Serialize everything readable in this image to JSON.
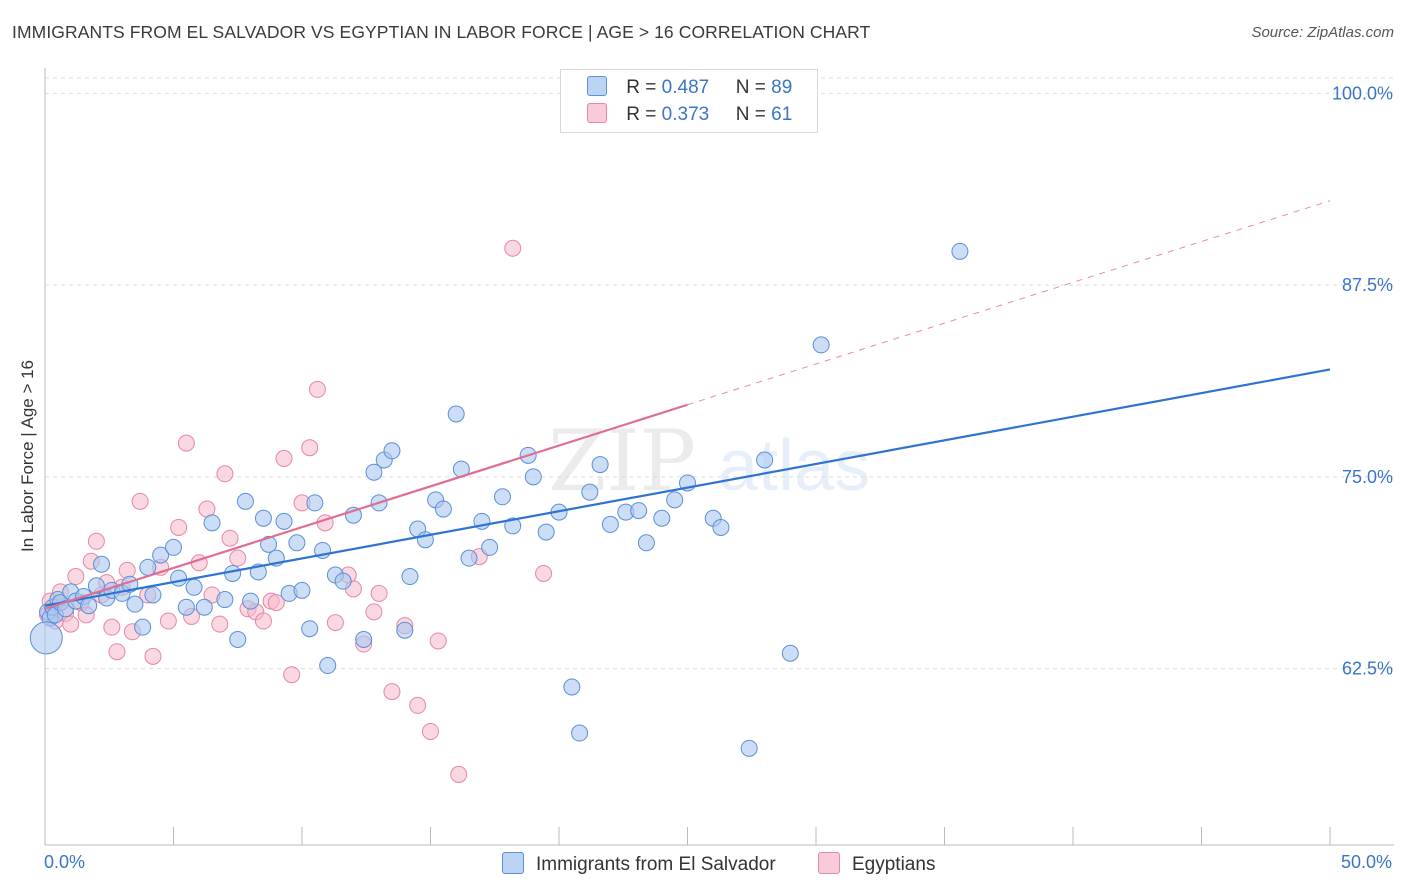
{
  "header": {
    "title": "IMMIGRANTS FROM EL SALVADOR VS EGYPTIAN IN LABOR FORCE | AGE > 16 CORRELATION CHART",
    "source": "Source: ZipAtlas.com"
  },
  "watermark": {
    "zip": "ZIP",
    "atlas": "atlas"
  },
  "legend": {
    "rows": [
      {
        "r_label": "R =",
        "r_value": "0.487",
        "n_label": "N =",
        "n_value": "89"
      },
      {
        "r_label": "R =",
        "r_value": "0.373",
        "n_label": "N =",
        "n_value": "61"
      }
    ]
  },
  "colors": {
    "blue_fill": "#a9c8f0",
    "blue_stroke": "#5b8fd6",
    "blue_line": "#2f73d1",
    "pink_fill": "#f5b8cb",
    "pink_stroke": "#e587a5",
    "pink_line": "#e06d93",
    "axis_text": "#3b74c9",
    "grid": "#dddddd"
  },
  "chart_data": {
    "type": "scatter",
    "ylabel": "In Labor Force | Age > 16",
    "xlim": [
      0,
      50
    ],
    "ylim": [
      51,
      101
    ],
    "x_tick_labels": [
      "0.0%",
      "50.0%"
    ],
    "y_ticks": [
      62.5,
      75.0,
      87.5,
      100.0
    ],
    "y_tick_labels": [
      "62.5%",
      "75.0%",
      "87.5%",
      "100.0%"
    ],
    "grid": true,
    "legend_position": "top-center",
    "series": [
      {
        "name": "Immigrants from El Salvador",
        "color": "blue",
        "trend": {
          "x0": 0,
          "y0": 66.6,
          "x1": 50,
          "y1": 82.0,
          "dashed_from": null
        },
        "points": [
          [
            0.1,
            66.2
          ],
          [
            0.2,
            65.8
          ],
          [
            0.3,
            66.5
          ],
          [
            0.4,
            66.0
          ],
          [
            0.5,
            67.0
          ],
          [
            0.6,
            66.8
          ],
          [
            0.8,
            66.4
          ],
          [
            1.0,
            67.5
          ],
          [
            1.2,
            66.9
          ],
          [
            1.5,
            67.2
          ],
          [
            1.7,
            66.6
          ],
          [
            2.0,
            67.9
          ],
          [
            2.2,
            69.3
          ],
          [
            2.4,
            67.1
          ],
          [
            2.6,
            67.6
          ],
          [
            3.0,
            67.4
          ],
          [
            3.3,
            68.0
          ],
          [
            3.5,
            66.7
          ],
          [
            3.8,
            65.2
          ],
          [
            4.0,
            69.1
          ],
          [
            4.2,
            67.3
          ],
          [
            4.5,
            69.9
          ],
          [
            5.0,
            70.4
          ],
          [
            5.2,
            68.4
          ],
          [
            5.5,
            66.5
          ],
          [
            5.8,
            67.8
          ],
          [
            6.2,
            66.5
          ],
          [
            6.5,
            72.0
          ],
          [
            7.0,
            67.0
          ],
          [
            7.3,
            68.7
          ],
          [
            7.5,
            64.4
          ],
          [
            7.8,
            73.4
          ],
          [
            8.0,
            66.9
          ],
          [
            8.3,
            68.8
          ],
          [
            8.5,
            72.3
          ],
          [
            8.7,
            70.6
          ],
          [
            9.0,
            69.7
          ],
          [
            9.3,
            72.1
          ],
          [
            9.5,
            67.4
          ],
          [
            9.8,
            70.7
          ],
          [
            10.0,
            67.6
          ],
          [
            10.3,
            65.1
          ],
          [
            10.5,
            73.3
          ],
          [
            10.8,
            70.2
          ],
          [
            11.0,
            62.7
          ],
          [
            11.3,
            68.6
          ],
          [
            11.6,
            68.2
          ],
          [
            12.0,
            72.5
          ],
          [
            12.4,
            64.4
          ],
          [
            12.8,
            75.3
          ],
          [
            13.0,
            73.3
          ],
          [
            13.2,
            76.1
          ],
          [
            13.5,
            76.7
          ],
          [
            14.0,
            65.0
          ],
          [
            14.2,
            68.5
          ],
          [
            14.5,
            71.6
          ],
          [
            14.8,
            70.9
          ],
          [
            15.2,
            73.5
          ],
          [
            15.5,
            72.9
          ],
          [
            16.0,
            79.1
          ],
          [
            16.2,
            75.5
          ],
          [
            16.5,
            69.7
          ],
          [
            17.0,
            72.1
          ],
          [
            17.3,
            70.4
          ],
          [
            17.8,
            73.7
          ],
          [
            18.2,
            71.8
          ],
          [
            18.8,
            76.4
          ],
          [
            19.0,
            75.0
          ],
          [
            19.5,
            71.4
          ],
          [
            20.0,
            72.7
          ],
          [
            20.5,
            61.3
          ],
          [
            20.8,
            58.3
          ],
          [
            21.2,
            74.0
          ],
          [
            21.6,
            75.8
          ],
          [
            22.0,
            71.9
          ],
          [
            22.6,
            72.7
          ],
          [
            23.1,
            72.8
          ],
          [
            23.4,
            70.7
          ],
          [
            24.0,
            72.3
          ],
          [
            24.5,
            73.5
          ],
          [
            25.0,
            74.6
          ],
          [
            26.0,
            72.3
          ],
          [
            26.3,
            71.7
          ],
          [
            27.4,
            57.3
          ],
          [
            28.0,
            76.1
          ],
          [
            29.0,
            63.5
          ],
          [
            30.2,
            83.6
          ],
          [
            35.6,
            89.7
          ],
          [
            0.05,
            64.5
          ]
        ]
      },
      {
        "name": "Egyptians",
        "color": "pink",
        "trend": {
          "x0": 0,
          "y0": 66.4,
          "x1": 50,
          "y1": 93.0,
          "solid_until": 25
        },
        "points": [
          [
            0.1,
            66.0
          ],
          [
            0.2,
            66.9
          ],
          [
            0.3,
            66.3
          ],
          [
            0.4,
            65.6
          ],
          [
            0.5,
            66.7
          ],
          [
            0.6,
            67.5
          ],
          [
            0.8,
            66.1
          ],
          [
            1.0,
            65.4
          ],
          [
            1.2,
            68.5
          ],
          [
            1.4,
            66.8
          ],
          [
            1.6,
            66.0
          ],
          [
            1.8,
            69.5
          ],
          [
            2.0,
            70.8
          ],
          [
            2.2,
            67.3
          ],
          [
            2.4,
            68.1
          ],
          [
            2.6,
            65.2
          ],
          [
            2.8,
            63.6
          ],
          [
            3.0,
            67.8
          ],
          [
            3.2,
            68.9
          ],
          [
            3.4,
            64.9
          ],
          [
            3.7,
            73.4
          ],
          [
            4.0,
            67.3
          ],
          [
            4.2,
            63.3
          ],
          [
            4.5,
            69.1
          ],
          [
            4.8,
            65.6
          ],
          [
            5.2,
            71.7
          ],
          [
            5.5,
            77.2
          ],
          [
            5.7,
            65.9
          ],
          [
            6.0,
            69.4
          ],
          [
            6.3,
            72.9
          ],
          [
            6.5,
            67.3
          ],
          [
            6.8,
            65.4
          ],
          [
            7.0,
            75.2
          ],
          [
            7.2,
            71.0
          ],
          [
            7.5,
            69.7
          ],
          [
            7.9,
            66.4
          ],
          [
            8.2,
            66.2
          ],
          [
            8.5,
            65.6
          ],
          [
            8.8,
            66.9
          ],
          [
            9.0,
            66.8
          ],
          [
            9.3,
            76.2
          ],
          [
            9.6,
            62.1
          ],
          [
            10.0,
            73.3
          ],
          [
            10.3,
            76.9
          ],
          [
            10.6,
            80.7
          ],
          [
            10.9,
            72.0
          ],
          [
            11.3,
            65.5
          ],
          [
            11.8,
            68.6
          ],
          [
            12.0,
            67.7
          ],
          [
            12.4,
            64.1
          ],
          [
            12.8,
            66.2
          ],
          [
            13.0,
            67.4
          ],
          [
            13.5,
            61.0
          ],
          [
            14.0,
            65.3
          ],
          [
            14.5,
            60.1
          ],
          [
            15.0,
            58.4
          ],
          [
            15.3,
            64.3
          ],
          [
            16.1,
            55.6
          ],
          [
            16.9,
            69.8
          ],
          [
            18.2,
            89.9
          ],
          [
            19.4,
            68.7
          ]
        ]
      }
    ]
  },
  "bottom_legend": {
    "items": [
      {
        "label": "Immigrants from El Salvador"
      },
      {
        "label": "Egyptians"
      }
    ]
  }
}
